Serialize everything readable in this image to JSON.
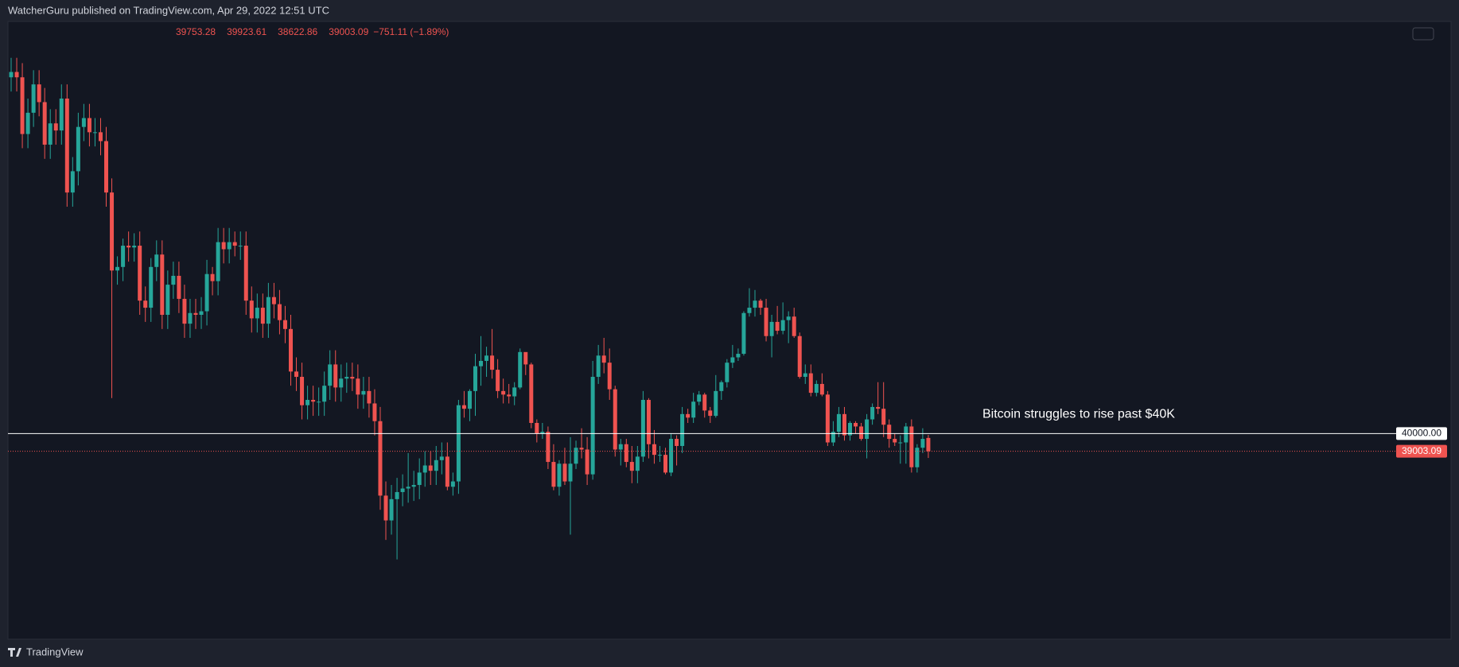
{
  "header": {
    "text": "WatcherGuru published on TradingView.com, Apr 29, 2022 12:51 UTC"
  },
  "footer": {
    "brand": "TradingView"
  },
  "chart_data": {
    "type": "candlestick",
    "annotation": "Bitcoin struggles to rise past $40K",
    "change_label": "−751.11 (−1.89%)",
    "price_line": {
      "value": 40000,
      "label": "40000.00"
    },
    "up_color": "#26a69a",
    "down_color": "#ef5350",
    "ylim": [
      28400,
      63250
    ],
    "open": [
      60100,
      60400,
      60100,
      56900,
      58100,
      59700,
      58700,
      56300,
      57500,
      57100,
      58900,
      53600,
      54800,
      57300,
      57800,
      57000,
      57000,
      56500,
      53600,
      49200,
      49400,
      50600,
      50500,
      50600,
      47500,
      47100,
      49400,
      50100,
      46700,
      48400,
      48900,
      47600,
      46200,
      46800,
      46700,
      46900,
      49000,
      48600,
      50800,
      50400,
      50800,
      50600,
      50600,
      47500,
      46500,
      47100,
      46200,
      47700,
      47300,
      46400,
      45900,
      43500,
      43200,
      41600,
      41900,
      41800,
      41800,
      42700,
      43900,
      42600,
      43100,
      43200,
      43100,
      42200,
      42400,
      41700,
      40700,
      36500,
      35100,
      36300,
      36700,
      36900,
      37000,
      37100,
      37800,
      38200,
      37900,
      38500,
      38700,
      37000,
      37300,
      41600,
      41400,
      42400,
      43800,
      44100,
      44400,
      43600,
      42400,
      42200,
      42100,
      42600,
      44600,
      43900,
      40600,
      40000,
      40100,
      38400,
      37000,
      38300,
      37300,
      38300,
      39200,
      39100,
      37700,
      43200,
      44400,
      44000,
      42500,
      39100,
      39400,
      38400,
      37900,
      38700,
      41900,
      39400,
      38800,
      38800,
      37800,
      39700,
      39300,
      41100,
      40900,
      41800,
      42200,
      41300,
      41000,
      42400,
      42900,
      44000,
      44300,
      44500,
      46800,
      47100,
      47500,
      47100,
      45500,
      46300,
      45800,
      46400,
      46600,
      45500,
      43200,
      43400,
      42300,
      42800,
      42200,
      39500,
      40100,
      41100,
      39900,
      40600,
      40400,
      39700,
      40800,
      41500,
      41400,
      40500,
      39700,
      39500,
      39500,
      40400,
      38100,
      39200,
      39753.28
    ],
    "high": [
      61200,
      61200,
      60900,
      58900,
      60500,
      60500,
      59500,
      58300,
      58300,
      59700,
      59700,
      55600,
      58100,
      58600,
      58600,
      57800,
      57800,
      57300,
      54400,
      50000,
      51000,
      51400,
      51300,
      51400,
      48300,
      49900,
      50900,
      50900,
      49200,
      49700,
      49700,
      48400,
      47600,
      47600,
      47700,
      49800,
      49400,
      51600,
      51600,
      51600,
      51400,
      51400,
      51400,
      48300,
      47900,
      47900,
      48500,
      48500,
      48100,
      47200,
      46700,
      44300,
      44000,
      42700,
      42700,
      42600,
      43500,
      44700,
      44700,
      43900,
      44000,
      44000,
      43900,
      43200,
      43200,
      42500,
      41500,
      37300,
      37100,
      37500,
      37700,
      38900,
      37900,
      38600,
      39000,
      39000,
      39300,
      39500,
      39500,
      37800,
      41900,
      42400,
      42500,
      44500,
      45500,
      44900,
      45900,
      44200,
      43100,
      42800,
      42900,
      44800,
      44500,
      44000,
      40800,
      40600,
      40400,
      39400,
      38500,
      39200,
      39800,
      39600,
      40300,
      39800,
      44100,
      45000,
      45400,
      44800,
      42700,
      39700,
      39700,
      39300,
      39300,
      42400,
      42000,
      40200,
      39300,
      39200,
      40000,
      39900,
      41500,
      41400,
      42300,
      42400,
      42300,
      41500,
      43300,
      43000,
      44200,
      45000,
      44800,
      46900,
      48200,
      48100,
      47600,
      47600,
      46700,
      47200,
      47400,
      46900,
      47100,
      45700,
      43900,
      43900,
      43000,
      43400,
      42400,
      40700,
      41500,
      41500,
      40700,
      40700,
      40600,
      41100,
      41700,
      42900,
      42900,
      40800,
      40000,
      39900,
      40600,
      40800,
      39400,
      40300,
      39923.61
    ],
    "low": [
      59300,
      59300,
      56100,
      56100,
      57300,
      57900,
      55500,
      55500,
      56300,
      56300,
      52800,
      52800,
      54000,
      56500,
      56200,
      56200,
      55700,
      52800,
      42000,
      48400,
      48600,
      49700,
      49700,
      46700,
      46300,
      46300,
      48600,
      45900,
      45900,
      47600,
      46800,
      45400,
      45400,
      45900,
      45900,
      46100,
      47800,
      47800,
      49600,
      49600,
      50000,
      49800,
      46700,
      45700,
      45700,
      45400,
      45400,
      46500,
      45600,
      45100,
      42700,
      42400,
      40800,
      40800,
      41000,
      41000,
      41000,
      41900,
      41800,
      41800,
      42300,
      42400,
      41400,
      41400,
      40900,
      39900,
      35700,
      34000,
      34300,
      32900,
      35900,
      36100,
      36200,
      36300,
      37000,
      37100,
      37100,
      37700,
      36800,
      36500,
      36600,
      40900,
      40700,
      41000,
      42700,
      43200,
      43100,
      42000,
      41700,
      41700,
      41600,
      42500,
      43300,
      40300,
      39500,
      39700,
      38000,
      36800,
      36500,
      37100,
      34300,
      38000,
      38600,
      37100,
      37400,
      42800,
      43400,
      41900,
      38700,
      38200,
      38100,
      37200,
      37200,
      38400,
      38600,
      38300,
      38400,
      37700,
      37600,
      38200,
      38900,
      40600,
      40600,
      41600,
      40900,
      40600,
      40900,
      41900,
      42600,
      43700,
      44100,
      44400,
      46600,
      46600,
      46700,
      45200,
      44300,
      45600,
      45600,
      45100,
      45400,
      43100,
      42800,
      42100,
      42100,
      42100,
      39300,
      39300,
      39800,
      39600,
      39600,
      40000,
      39600,
      38600,
      40500,
      41100,
      39800,
      39200,
      39300,
      38300,
      38300,
      37800,
      37800,
      38900,
      38622.86
    ],
    "close": [
      60400,
      60100,
      56900,
      58100,
      59700,
      58700,
      56300,
      57500,
      57100,
      58900,
      53600,
      54800,
      57300,
      57800,
      57000,
      57000,
      56500,
      53600,
      49200,
      49400,
      50600,
      50500,
      50600,
      47500,
      47100,
      49400,
      50100,
      46700,
      48400,
      48900,
      47600,
      46200,
      46800,
      46700,
      46900,
      49000,
      48600,
      50800,
      50400,
      50800,
      50600,
      50600,
      47500,
      46500,
      47100,
      46200,
      47700,
      47300,
      46400,
      45900,
      43500,
      43200,
      41600,
      41900,
      41800,
      41800,
      42700,
      43900,
      42600,
      43100,
      43200,
      43100,
      42200,
      42400,
      41700,
      40700,
      36500,
      35100,
      36300,
      36700,
      36900,
      37000,
      37100,
      37800,
      38200,
      37900,
      38500,
      38700,
      37000,
      37300,
      41600,
      41400,
      42400,
      43800,
      44100,
      44400,
      43600,
      42400,
      42200,
      42100,
      42600,
      44600,
      43900,
      40600,
      40000,
      40100,
      38400,
      37000,
      38300,
      37300,
      38300,
      39200,
      39100,
      37700,
      43200,
      44400,
      44000,
      42500,
      39100,
      39400,
      38400,
      37900,
      38700,
      41900,
      39400,
      38800,
      38800,
      37800,
      39700,
      39300,
      41100,
      40900,
      41800,
      42200,
      41300,
      41000,
      42400,
      42900,
      44000,
      44300,
      44500,
      46800,
      47100,
      47500,
      47100,
      45500,
      46300,
      45800,
      46400,
      46600,
      45500,
      43200,
      43400,
      42300,
      42800,
      42200,
      39500,
      40100,
      41100,
      39900,
      40600,
      40400,
      39700,
      40800,
      41500,
      41400,
      40500,
      39700,
      39500,
      39500,
      40400,
      38100,
      39200,
      39700,
      39003.09
    ]
  }
}
